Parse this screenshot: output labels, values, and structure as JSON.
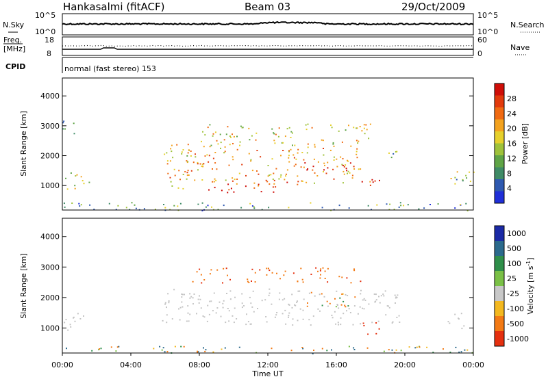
{
  "header": {
    "station": "Hankasalmi (fitACF)",
    "beam": "Beam 03",
    "date": "29/Oct/2009"
  },
  "strip_panels": {
    "nsky_label": "N.Sky",
    "nsearch_label": "N.Search",
    "nsky_ticks": [
      "10^5",
      "10^0"
    ],
    "nsearch_ticks": [
      "10^5",
      "10^0"
    ],
    "freq_label": [
      "Freq.",
      "[MHz]"
    ],
    "freq_ticks": [
      "18",
      "8"
    ],
    "nave_label": "Nave",
    "nave_ticks": [
      "60",
      "0"
    ],
    "cpid_label": "CPID",
    "cpid_text": "normal (fast stereo) 153"
  },
  "chart_data": [
    {
      "type": "heatmap",
      "title": "",
      "xlabel": "Time UT",
      "ylabel": "Slant Range [km]",
      "x_range_hours": [
        0,
        24
      ],
      "ylim": [
        180,
        4600
      ],
      "x_tick_labels": [
        "00:00",
        "04:00",
        "08:00",
        "12:00",
        "16:00",
        "20:00",
        "00:00"
      ],
      "y_tick_labels": [
        "1000",
        "2000",
        "3000",
        "4000"
      ],
      "colorbar_label": "Power [dB]",
      "colorbar_ticks": [
        "28",
        "24",
        "20",
        "16",
        "12",
        "8",
        "4"
      ],
      "colorbar_colors": [
        "#1f2fd8",
        "#2e59b0",
        "#3f8b66",
        "#5fa446",
        "#9fc23a",
        "#e6d02c",
        "#f3a21e",
        "#f06a12",
        "#e23a0c",
        "#cf0e08"
      ],
      "scatter_regions": [
        {
          "t0": 0.0,
          "t1": 1.6,
          "r0": 900,
          "r1": 1500,
          "level": 0.45
        },
        {
          "t0": 0.0,
          "t1": 1.1,
          "r0": 2750,
          "r1": 3200,
          "level": 0.35
        },
        {
          "t0": 5.8,
          "t1": 7.5,
          "r0": 900,
          "r1": 2400,
          "level": 0.6
        },
        {
          "t0": 7.5,
          "t1": 12.5,
          "r0": 760,
          "r1": 1100,
          "level": 0.9
        },
        {
          "t0": 7.0,
          "t1": 17.5,
          "r0": 1100,
          "r1": 2300,
          "level": 0.65
        },
        {
          "t0": 8.0,
          "t1": 18.0,
          "r0": 2300,
          "r1": 3100,
          "level": 0.55
        },
        {
          "t0": 14.0,
          "t1": 17.5,
          "r0": 1500,
          "r1": 1900,
          "level": 0.85
        },
        {
          "t0": 17.3,
          "t1": 18.6,
          "r0": 800,
          "r1": 1300,
          "level": 0.9
        },
        {
          "t0": 12.8,
          "t1": 14.0,
          "r0": 1050,
          "r1": 1400,
          "level": 0.7
        },
        {
          "t0": 19.0,
          "t1": 19.6,
          "r0": 1900,
          "r1": 2600,
          "level": 0.35
        },
        {
          "t0": 22.5,
          "t1": 24.0,
          "r0": 900,
          "r1": 1600,
          "level": 0.4
        },
        {
          "t0": 0.0,
          "t1": 24.0,
          "r0": 180,
          "r1": 450,
          "level": 0.3
        }
      ]
    },
    {
      "type": "heatmap",
      "title": "",
      "xlabel": "Time UT",
      "ylabel": "Slant Range [km]",
      "x_range_hours": [
        0,
        24
      ],
      "ylim": [
        180,
        4600
      ],
      "x_tick_labels": [
        "00:00",
        "04:00",
        "08:00",
        "12:00",
        "16:00",
        "20:00",
        "00:00"
      ],
      "y_tick_labels": [
        "1000",
        "2000",
        "3000",
        "4000"
      ],
      "colorbar_label": "Velocity [m s^-1]",
      "colorbar_ticks": [
        "1000",
        "500",
        "100",
        "25",
        "-25",
        "-100",
        "-500",
        "-1000"
      ],
      "colorbar_colors": [
        "#1b2aa6",
        "#2b6a8c",
        "#2f8f4a",
        "#7ac046",
        "#c8c8c8",
        "#f3b81f",
        "#f37a14",
        "#e5300f"
      ],
      "ground_scatter_color": "#c4c4c4",
      "scatter_regions": [
        {
          "t0": 5.8,
          "t1": 19.8,
          "r0": 1100,
          "r1": 2300,
          "kind": "ground"
        },
        {
          "t0": 0.0,
          "t1": 1.6,
          "r0": 900,
          "r1": 1500,
          "kind": "ground"
        },
        {
          "t0": 22.5,
          "t1": 24.0,
          "r0": 1000,
          "r1": 1500,
          "kind": "ground"
        },
        {
          "t0": 7.5,
          "t1": 17.5,
          "r0": 2500,
          "r1": 3000,
          "kind": "flow",
          "level": -400
        },
        {
          "t0": 14.0,
          "t1": 17.2,
          "r0": 1700,
          "r1": 2200,
          "kind": "flow",
          "level": -200
        },
        {
          "t0": 17.5,
          "t1": 18.5,
          "r0": 700,
          "r1": 1200,
          "kind": "flow",
          "level": -700
        },
        {
          "t0": 0.0,
          "t1": 24.0,
          "r0": 180,
          "r1": 420,
          "kind": "flow",
          "level": 0
        }
      ]
    }
  ]
}
